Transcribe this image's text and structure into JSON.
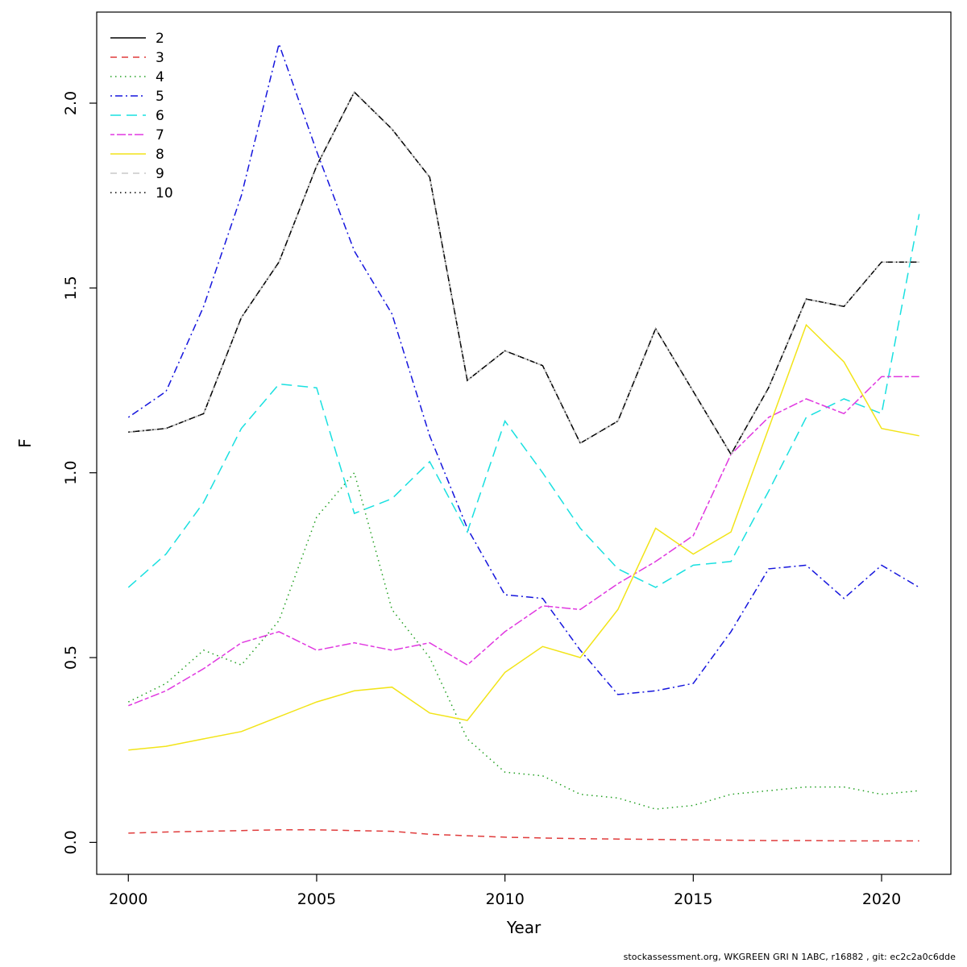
{
  "chart_data": {
    "type": "line",
    "title": "",
    "xlabel": "Year",
    "ylabel": "F",
    "x_range": [
      1999.16,
      2021.84
    ],
    "y_range": [
      -0.0864,
      2.2464
    ],
    "x_ticks": [
      2000,
      2005,
      2010,
      2015,
      2020
    ],
    "y_tick_values": [
      0.0,
      0.5,
      1.0,
      1.5,
      2.0
    ],
    "y_tick_labels": [
      "0.0",
      "0.5",
      "1.0",
      "1.5",
      "2.0"
    ],
    "grid": false,
    "legend_position": "top-left",
    "years": [
      2000,
      2001,
      2002,
      2003,
      2004,
      2005,
      2006,
      2007,
      2008,
      2009,
      2010,
      2011,
      2012,
      2013,
      2014,
      2015,
      2016,
      2017,
      2018,
      2019,
      2020,
      2021
    ],
    "series": [
      {
        "name": "2",
        "color": "#000000",
        "style": "solid",
        "dash": "",
        "values": [
          1.11,
          1.12,
          1.16,
          1.42,
          1.57,
          1.83,
          2.03,
          1.93,
          1.8,
          1.25,
          1.33,
          1.29,
          1.08,
          1.14,
          1.39,
          1.22,
          1.05,
          1.23,
          1.47,
          1.45,
          1.57,
          1.57
        ]
      },
      {
        "name": "3",
        "color": "#e03c3c",
        "style": "dashed",
        "dash": "8 6",
        "values": [
          0.025,
          0.028,
          0.03,
          0.032,
          0.034,
          0.034,
          0.032,
          0.03,
          0.022,
          0.018,
          0.014,
          0.012,
          0.01,
          0.009,
          0.008,
          0.007,
          0.006,
          0.005,
          0.005,
          0.004,
          0.004,
          0.004
        ]
      },
      {
        "name": "4",
        "color": "#22a022",
        "style": "dotted",
        "dash": "1.5 4.5",
        "values": [
          0.38,
          0.43,
          0.52,
          0.48,
          0.6,
          0.88,
          1.0,
          0.63,
          0.5,
          0.28,
          0.19,
          0.18,
          0.13,
          0.12,
          0.09,
          0.1,
          0.13,
          0.14,
          0.15,
          0.15,
          0.13,
          0.14
        ]
      },
      {
        "name": "5",
        "color": "#1515dd",
        "style": "dashdot",
        "dash": "2 4 9 4",
        "values": [
          1.15,
          1.22,
          1.45,
          1.75,
          2.16,
          1.87,
          1.6,
          1.43,
          1.1,
          0.85,
          0.67,
          0.66,
          0.52,
          0.4,
          0.41,
          0.43,
          0.57,
          0.74,
          0.75,
          0.66,
          0.75,
          0.69
        ]
      },
      {
        "name": "6",
        "color": "#19e0e0",
        "style": "longdash",
        "dash": "13 7",
        "values": [
          0.69,
          0.78,
          0.92,
          1.12,
          1.24,
          1.23,
          0.89,
          0.93,
          1.03,
          0.84,
          1.14,
          1.0,
          0.85,
          0.74,
          0.69,
          0.75,
          0.76,
          0.95,
          1.15,
          1.2,
          1.16,
          1.7
        ]
      },
      {
        "name": "7",
        "color": "#e038e0",
        "style": "twodash",
        "dash": "5 3 11 3",
        "values": [
          0.37,
          0.41,
          0.47,
          0.54,
          0.57,
          0.52,
          0.54,
          0.52,
          0.54,
          0.48,
          0.57,
          0.64,
          0.63,
          0.7,
          0.76,
          0.83,
          1.05,
          1.15,
          1.2,
          1.16,
          1.26,
          1.26
        ]
      },
      {
        "name": "8",
        "color": "#f2e418",
        "style": "solid",
        "dash": "",
        "values": [
          0.25,
          0.26,
          0.28,
          0.3,
          0.34,
          0.38,
          0.41,
          0.42,
          0.35,
          0.33,
          0.46,
          0.53,
          0.5,
          0.63,
          0.85,
          0.78,
          0.84,
          1.12,
          1.4,
          1.3,
          1.12,
          1.1
        ]
      },
      {
        "name": "9",
        "color": "#c8c8c8",
        "style": "dashed",
        "dash": "8 6",
        "values": [
          1.11,
          1.12,
          1.16,
          1.42,
          1.57,
          1.83,
          2.03,
          1.93,
          1.8,
          1.25,
          1.33,
          1.29,
          1.08,
          1.14,
          1.39,
          1.22,
          1.05,
          1.23,
          1.47,
          1.45,
          1.57,
          1.57
        ]
      },
      {
        "name": "10",
        "color": "#000000",
        "style": "dotted",
        "dash": "1.5 4.5",
        "values": [
          1.11,
          1.12,
          1.16,
          1.42,
          1.57,
          1.83,
          2.03,
          1.93,
          1.8,
          1.25,
          1.33,
          1.29,
          1.08,
          1.14,
          1.39,
          1.22,
          1.05,
          1.23,
          1.47,
          1.45,
          1.57,
          1.57
        ]
      }
    ]
  },
  "footer": {
    "text": "stockassessment.org, WKGREEN GRI N 1ABC, r16882 , git: ec2c2a0c6dde"
  }
}
